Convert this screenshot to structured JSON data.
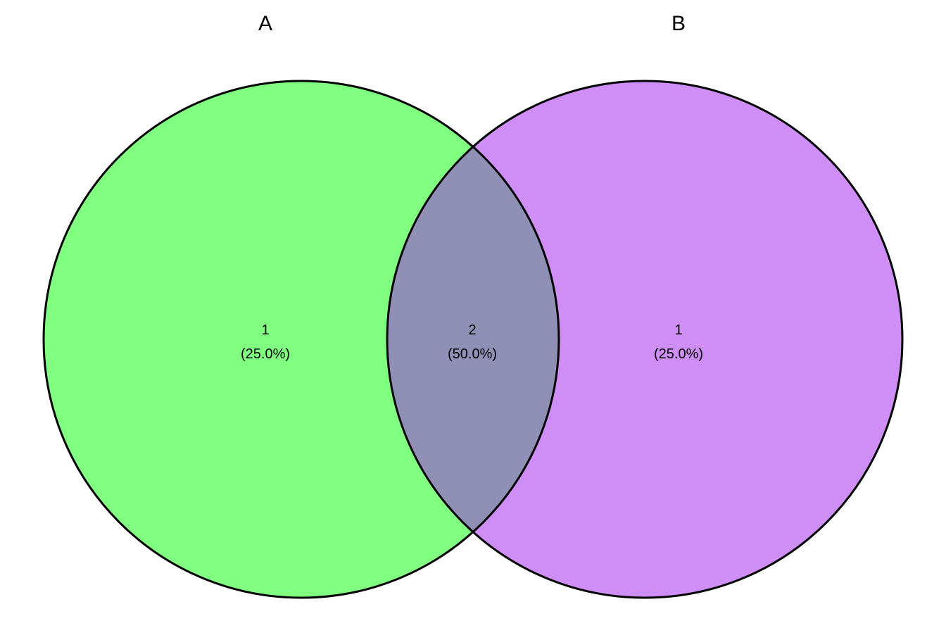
{
  "sets": [
    {
      "name": "A",
      "color": "#80ff80"
    },
    {
      "name": "B",
      "color": "#cf8ef5"
    }
  ],
  "intersection_color": "#9090b6",
  "regions": {
    "a_only": {
      "count": "1",
      "percent": "(25.0%)"
    },
    "a_and_b": {
      "count": "2",
      "percent": "(50.0%)"
    },
    "b_only": {
      "count": "1",
      "percent": "(25.0%)"
    }
  }
}
